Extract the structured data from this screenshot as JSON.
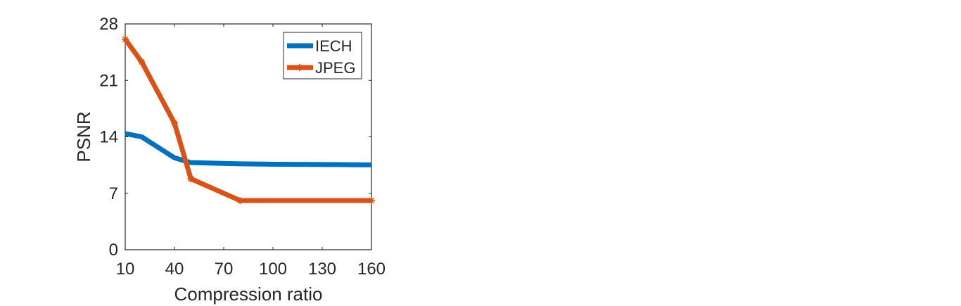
{
  "chart_data": {
    "type": "line",
    "title": "",
    "xlabel": "Compression ratio",
    "ylabel": "PSNR",
    "xlim": [
      10,
      160
    ],
    "ylim": [
      0,
      28
    ],
    "xticks": [
      10,
      40,
      70,
      100,
      130,
      160
    ],
    "yticks": [
      0,
      7,
      14,
      21,
      28
    ],
    "grid": false,
    "legend_position": "top-right",
    "series": [
      {
        "name": "IECH",
        "color": "#0072BD",
        "marker": "none",
        "x": [
          10,
          20,
          30,
          40,
          50,
          60,
          80,
          100,
          120,
          140,
          160
        ],
        "y": [
          14.4,
          14.0,
          12.7,
          11.4,
          10.8,
          10.75,
          10.65,
          10.6,
          10.58,
          10.55,
          10.52
        ]
      },
      {
        "name": "JPEG",
        "color": "#D95319",
        "marker": "star",
        "x": [
          10,
          20,
          40,
          50,
          80,
          160
        ],
        "y": [
          26.1,
          23.3,
          15.7,
          8.8,
          6.1,
          6.1
        ]
      }
    ]
  }
}
